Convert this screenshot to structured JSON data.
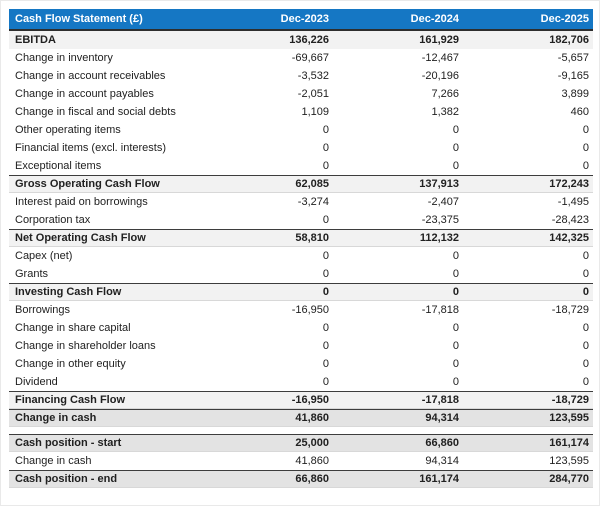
{
  "table": {
    "header": {
      "label": "Cash Flow Statement (£)",
      "columns": [
        "Dec-2023",
        "Dec-2024",
        "Dec-2025"
      ]
    },
    "rows": [
      {
        "label": "EBITDA",
        "values": [
          "136,226",
          "161,929",
          "182,706"
        ],
        "style": "ebitda",
        "gap_before": false
      },
      {
        "label": "Change in inventory",
        "values": [
          "-69,667",
          "-12,467",
          "-5,657"
        ],
        "style": "normal",
        "gap_before": false
      },
      {
        "label": "Change in account receivables",
        "values": [
          "-3,532",
          "-20,196",
          "-9,165"
        ],
        "style": "normal",
        "gap_before": false
      },
      {
        "label": "Change in account payables",
        "values": [
          "-2,051",
          "7,266",
          "3,899"
        ],
        "style": "normal",
        "gap_before": false
      },
      {
        "label": "Change in fiscal and social debts",
        "values": [
          "1,109",
          "1,382",
          "460"
        ],
        "style": "normal",
        "gap_before": false
      },
      {
        "label": "Other operating items",
        "values": [
          "0",
          "0",
          "0"
        ],
        "style": "normal",
        "gap_before": false
      },
      {
        "label": "Financial items (excl. interests)",
        "values": [
          "0",
          "0",
          "0"
        ],
        "style": "normal",
        "gap_before": false
      },
      {
        "label": "Exceptional items",
        "values": [
          "0",
          "0",
          "0"
        ],
        "style": "normal",
        "gap_before": false
      },
      {
        "label": "Gross Operating Cash Flow",
        "values": [
          "62,085",
          "137,913",
          "172,243"
        ],
        "style": "subtotal",
        "gap_before": false
      },
      {
        "label": "Interest paid on borrowings",
        "values": [
          "-3,274",
          "-2,407",
          "-1,495"
        ],
        "style": "normal",
        "gap_before": false
      },
      {
        "label": "Corporation tax",
        "values": [
          "0",
          "-23,375",
          "-28,423"
        ],
        "style": "normal",
        "gap_before": false
      },
      {
        "label": "Net Operating Cash Flow",
        "values": [
          "58,810",
          "112,132",
          "142,325"
        ],
        "style": "subtotal",
        "gap_before": false
      },
      {
        "label": "Capex (net)",
        "values": [
          "0",
          "0",
          "0"
        ],
        "style": "normal",
        "gap_before": false
      },
      {
        "label": "Grants",
        "values": [
          "0",
          "0",
          "0"
        ],
        "style": "normal",
        "gap_before": false
      },
      {
        "label": "Investing Cash Flow",
        "values": [
          "0",
          "0",
          "0"
        ],
        "style": "subtotal",
        "gap_before": false
      },
      {
        "label": "Borrowings",
        "values": [
          "-16,950",
          "-17,818",
          "-18,729"
        ],
        "style": "normal",
        "gap_before": false
      },
      {
        "label": "Change in share capital",
        "values": [
          "0",
          "0",
          "0"
        ],
        "style": "normal",
        "gap_before": false
      },
      {
        "label": "Change in shareholder loans",
        "values": [
          "0",
          "0",
          "0"
        ],
        "style": "normal",
        "gap_before": false
      },
      {
        "label": "Change in other equity",
        "values": [
          "0",
          "0",
          "0"
        ],
        "style": "normal",
        "gap_before": false
      },
      {
        "label": "Dividend",
        "values": [
          "0",
          "0",
          "0"
        ],
        "style": "normal",
        "gap_before": false
      },
      {
        "label": "Financing Cash Flow",
        "values": [
          "-16,950",
          "-17,818",
          "-18,729"
        ],
        "style": "subtotal",
        "gap_before": false
      },
      {
        "label": "Change in cash",
        "values": [
          "41,860",
          "94,314",
          "123,595"
        ],
        "style": "total",
        "gap_before": false
      },
      {
        "label": "Cash position - start",
        "values": [
          "25,000",
          "66,860",
          "161,174"
        ],
        "style": "total",
        "gap_before": true
      },
      {
        "label": "Change in cash",
        "values": [
          "41,860",
          "94,314",
          "123,595"
        ],
        "style": "normal",
        "gap_before": false
      },
      {
        "label": "Cash position - end",
        "values": [
          "66,860",
          "161,174",
          "284,770"
        ],
        "style": "total",
        "gap_before": false
      }
    ]
  },
  "colors": {
    "header_bg": "#1577c4",
    "header_text": "#ffffff",
    "row_light_bg": "#f2f2f2",
    "row_dark_bg": "#e3e3e3",
    "border_dark": "#3d3d3d",
    "text": "#212121"
  }
}
